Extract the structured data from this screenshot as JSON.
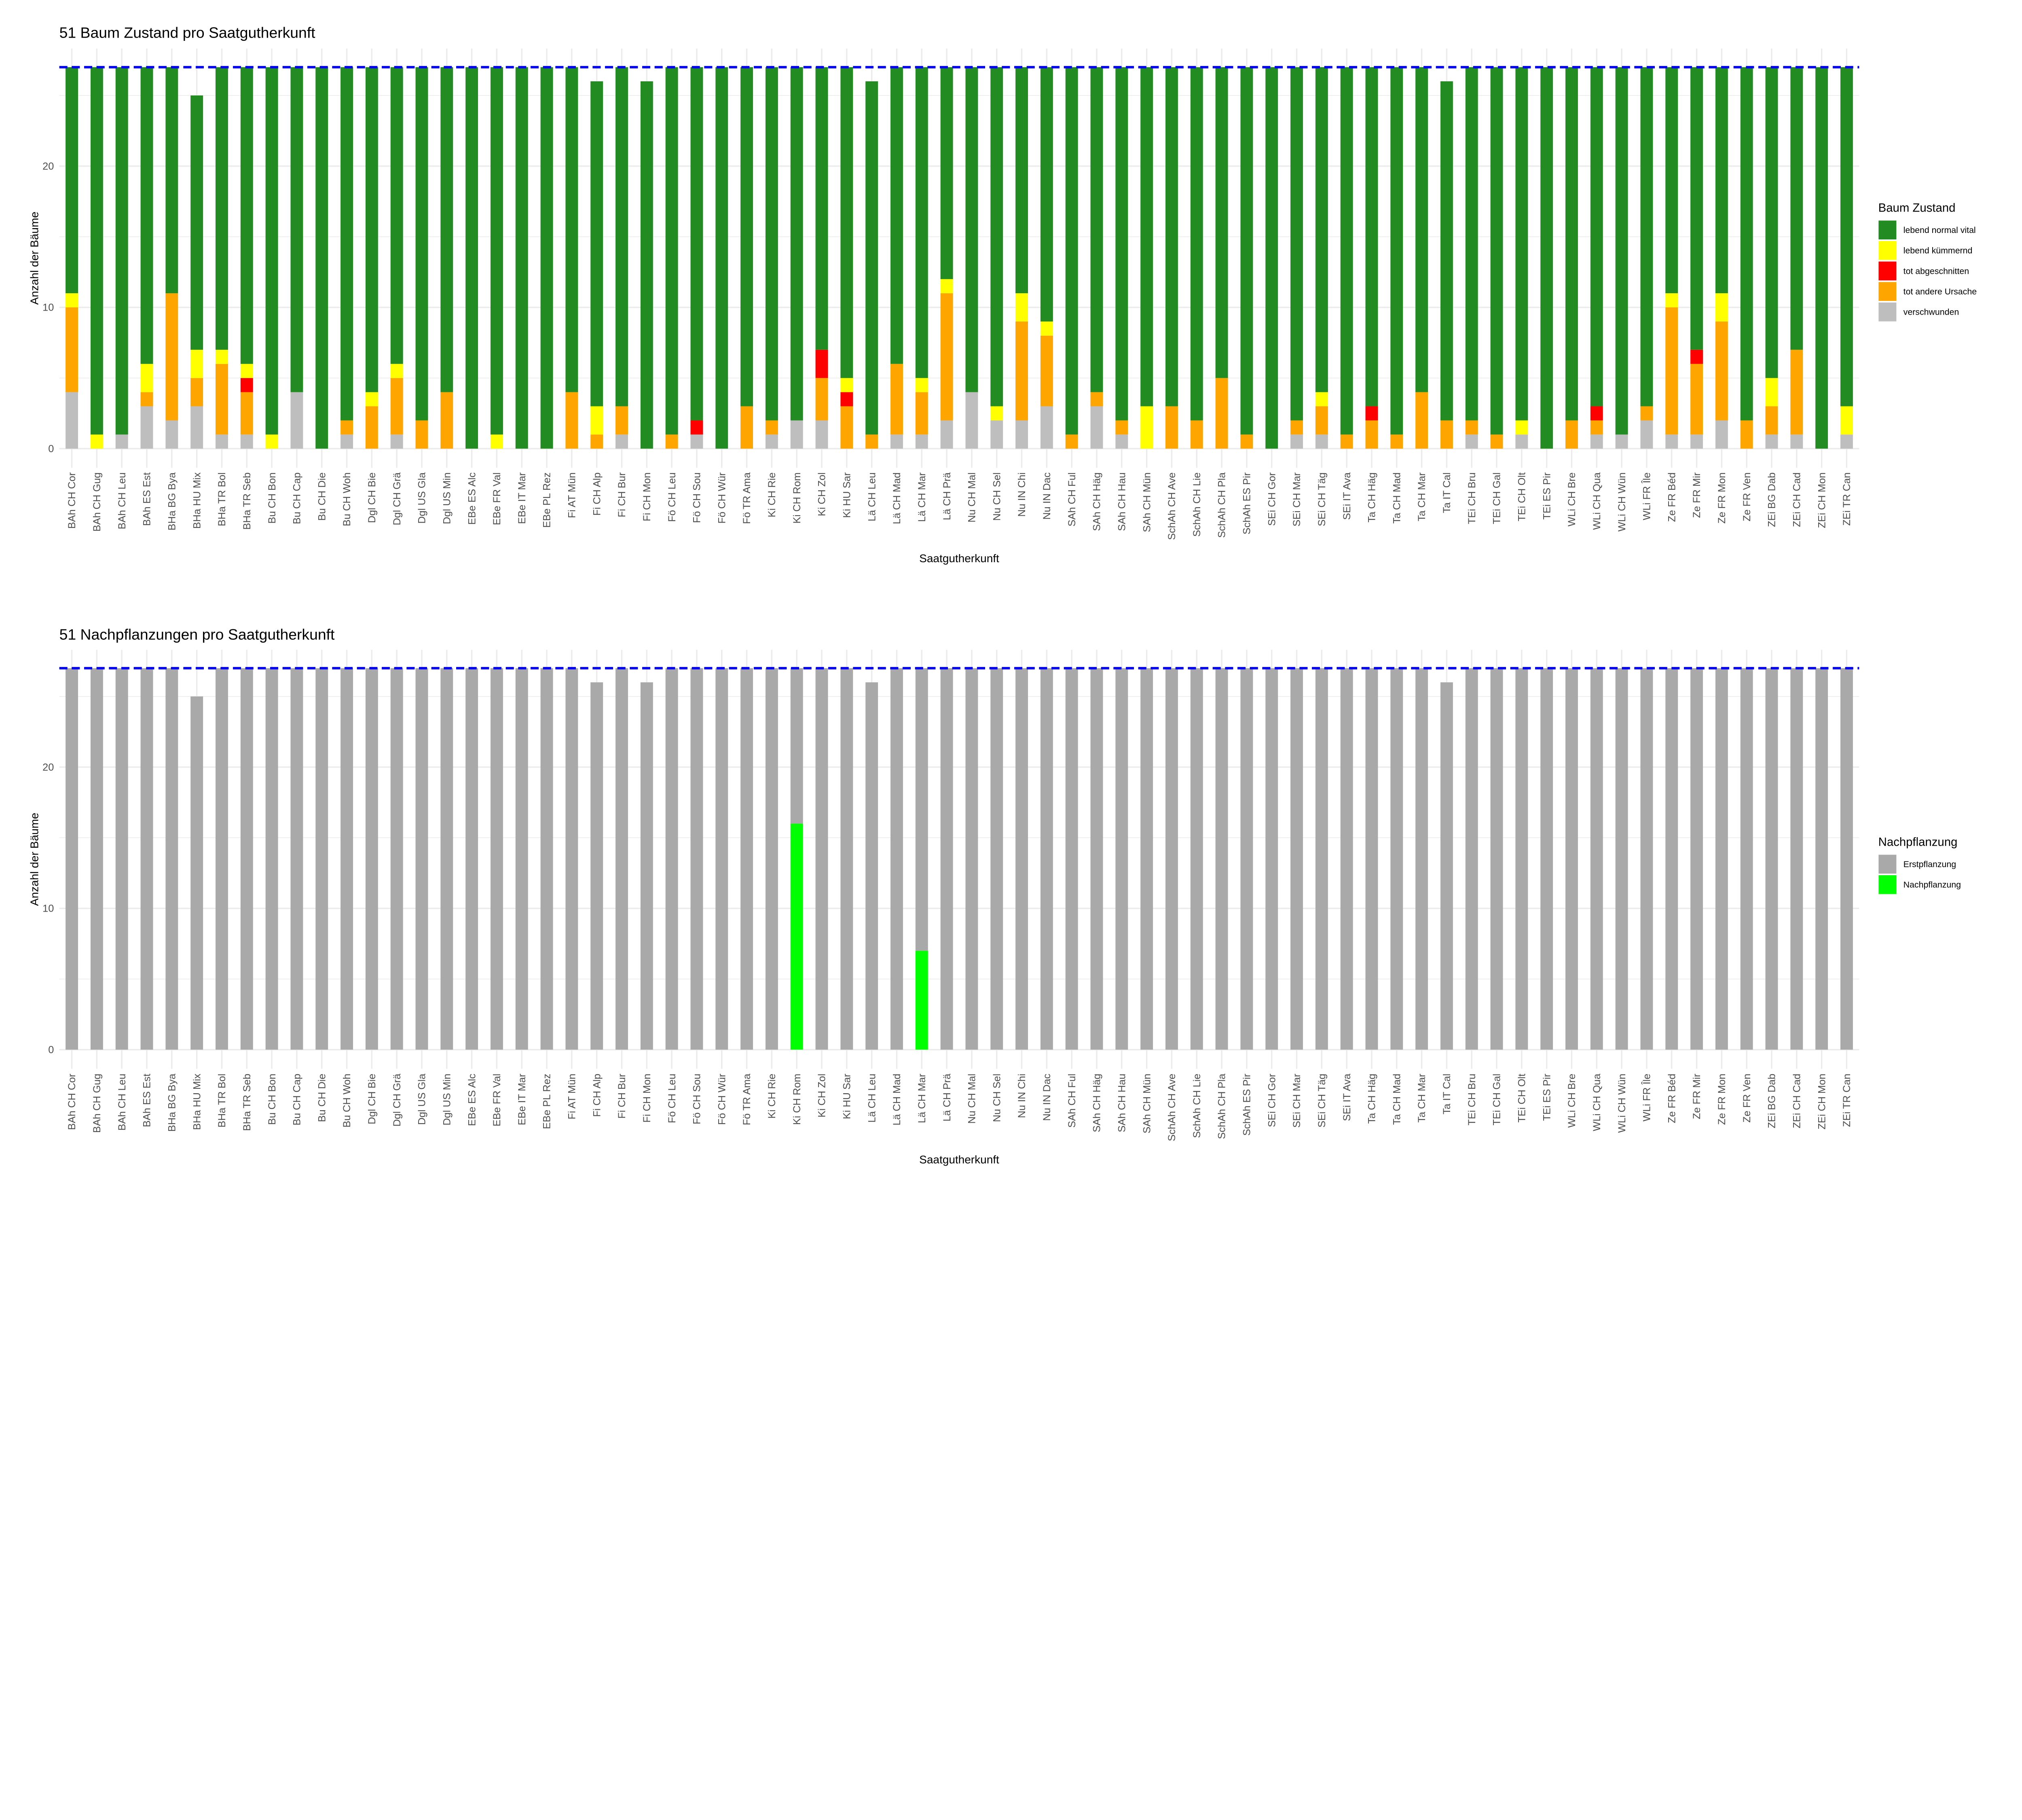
{
  "chart_data": [
    {
      "type": "bar",
      "stacked": true,
      "title": "51 Baum Zustand pro Saatgutherkunft",
      "xlabel": "Saatgutherkunft",
      "ylabel": "Anzahl der Bäume",
      "yticks": [
        "0",
        "10",
        "20"
      ],
      "ylim": [
        0,
        28
      ],
      "grid": true,
      "reference_line": {
        "y": 27,
        "color": "#0000FF",
        "style": "dashed"
      },
      "legend": {
        "title": "Baum Zustand",
        "position": "right"
      },
      "categories": [
        "BAh CH Cor",
        "BAh CH Gug",
        "BAh CH Leu",
        "BAh ES Est",
        "BHa BG Bya",
        "BHa HU Mix",
        "BHa TR Bol",
        "BHa TR Seb",
        "Bu CH Bon",
        "Bu CH Cap",
        "Bu CH Die",
        "Bu CH Woh",
        "Dgl CH Bie",
        "Dgl CH Grä",
        "Dgl US Gla",
        "Dgl US Min",
        "EBe ES Alc",
        "EBe FR Val",
        "EBe IT Mar",
        "EBe PL Rez",
        "Fi AT Mün",
        "Fi CH Alp",
        "Fi CH Bur",
        "Fi CH Mon",
        "Fö CH Leu",
        "Fö CH Sou",
        "Fö CH Wür",
        "Fö TR Ama",
        "Ki CH Rie",
        "Ki CH Rom",
        "Ki CH Zol",
        "Ki HU Sar",
        "Lä CH Leu",
        "Lä CH Mad",
        "Lä CH Mar",
        "Lä CH Prä",
        "Nu CH Mal",
        "Nu CH Sel",
        "Nu IN Chi",
        "Nu IN Dac",
        "SAh CH Ful",
        "SAh CH Häg",
        "SAh CH Hau",
        "SAh CH Mün",
        "SchAh CH Ave",
        "SchAh CH Lie",
        "SchAh CH Pla",
        "SchAh ES Pir",
        "SEi CH Gor",
        "SEi CH Mar",
        "SEi CH Täg",
        "SEi IT Ava",
        "Ta CH Häg",
        "Ta CH Mad",
        "Ta CH Mar",
        "Ta IT Cal",
        "TEi CH Bru",
        "TEi CH Gal",
        "TEi CH Olt",
        "TEi ES Pir",
        "WLi CH Bre",
        "WLi CH Qua",
        "WLi CH Wün",
        "WLi FR Île",
        "Ze FR Béd",
        "Ze FR Mir",
        "Ze FR Mon",
        "Ze FR Ven",
        "ZEi BG Dab",
        "ZEi CH Cad",
        "ZEi CH Mon",
        "ZEi TR Can"
      ],
      "series": [
        {
          "name": "verschwunden",
          "color": "#BEBEBE",
          "values": [
            4,
            0,
            1,
            3,
            2,
            3,
            1,
            1,
            0,
            4,
            0,
            1,
            0,
            1,
            0,
            0,
            0,
            0,
            0,
            0,
            0,
            0,
            1,
            0,
            0,
            1,
            0,
            0,
            1,
            2,
            2,
            0,
            0,
            1,
            1,
            2,
            4,
            2,
            2,
            3,
            0,
            3,
            1,
            0,
            0,
            0,
            0,
            0,
            0,
            1,
            1,
            0,
            0,
            0,
            0,
            0,
            1,
            0,
            1,
            0,
            0,
            1,
            1,
            2,
            1,
            1,
            2,
            0,
            1,
            1,
            0,
            1
          ]
        },
        {
          "name": "tot andere Ursache",
          "color": "#FFA500",
          "values": [
            6,
            0,
            0,
            1,
            9,
            2,
            5,
            3,
            0,
            0,
            0,
            1,
            3,
            4,
            2,
            4,
            0,
            0,
            0,
            0,
            4,
            1,
            2,
            0,
            1,
            0,
            0,
            3,
            1,
            0,
            3,
            3,
            1,
            5,
            3,
            9,
            0,
            0,
            7,
            5,
            1,
            1,
            1,
            0,
            3,
            2,
            5,
            1,
            0,
            1,
            2,
            1,
            2,
            1,
            4,
            2,
            1,
            1,
            0,
            0,
            2,
            1,
            0,
            1,
            9,
            5,
            7,
            2,
            2,
            6,
            0,
            0
          ]
        },
        {
          "name": "tot abgeschnitten",
          "color": "#FF0000",
          "values": [
            0,
            0,
            0,
            0,
            0,
            0,
            0,
            1,
            0,
            0,
            0,
            0,
            0,
            0,
            0,
            0,
            0,
            0,
            0,
            0,
            0,
            0,
            0,
            0,
            0,
            1,
            0,
            0,
            0,
            0,
            2,
            1,
            0,
            0,
            0,
            0,
            0,
            0,
            0,
            0,
            0,
            0,
            0,
            0,
            0,
            0,
            0,
            0,
            0,
            0,
            0,
            0,
            1,
            0,
            0,
            0,
            0,
            0,
            0,
            0,
            0,
            1,
            0,
            0,
            0,
            1,
            0,
            0,
            0,
            0,
            0,
            0
          ]
        },
        {
          "name": "lebend kümmernd",
          "color": "#FFFF00",
          "values": [
            1,
            1,
            0,
            2,
            0,
            2,
            1,
            1,
            1,
            0,
            0,
            0,
            1,
            1,
            0,
            0,
            0,
            1,
            0,
            0,
            0,
            2,
            0,
            0,
            0,
            0,
            0,
            0,
            0,
            0,
            0,
            1,
            0,
            0,
            1,
            1,
            0,
            1,
            2,
            1,
            0,
            0,
            0,
            3,
            0,
            0,
            0,
            0,
            0,
            0,
            1,
            0,
            0,
            0,
            0,
            0,
            0,
            0,
            1,
            0,
            0,
            0,
            0,
            0,
            1,
            0,
            2,
            0,
            2,
            0,
            0,
            2
          ]
        },
        {
          "name": "lebend normal vital",
          "color": "#228B22",
          "values": [
            16,
            26,
            26,
            21,
            16,
            18,
            20,
            21,
            26,
            23,
            27,
            25,
            23,
            21,
            25,
            23,
            27,
            26,
            27,
            27,
            23,
            23,
            24,
            26,
            26,
            25,
            27,
            24,
            25,
            25,
            20,
            22,
            25,
            21,
            22,
            15,
            23,
            24,
            16,
            18,
            26,
            23,
            25,
            24,
            24,
            25,
            22,
            26,
            27,
            25,
            23,
            26,
            24,
            26,
            23,
            24,
            25,
            26,
            25,
            27,
            25,
            24,
            26,
            24,
            16,
            20,
            16,
            25,
            22,
            20,
            27,
            24
          ]
        }
      ],
      "legend_order": [
        "lebend normal vital",
        "lebend kümmernd",
        "tot abgeschnitten",
        "tot andere Ursache",
        "verschwunden"
      ]
    },
    {
      "type": "bar",
      "stacked": true,
      "title": "51 Nachpflanzungen pro Saatgutherkunft",
      "xlabel": "Saatgutherkunft",
      "ylabel": "Anzahl der Bäume",
      "yticks": [
        "0",
        "10",
        "20"
      ],
      "ylim": [
        0,
        28
      ],
      "grid": true,
      "reference_line": {
        "y": 27,
        "color": "#0000FF",
        "style": "dashed"
      },
      "legend": {
        "title": "Nachpflanzung",
        "position": "right"
      },
      "categories_same_as_first": true,
      "series": [
        {
          "name": "Nachpflanzung",
          "color": "#00FF00",
          "values": [
            0,
            0,
            0,
            0,
            0,
            0,
            0,
            0,
            0,
            0,
            0,
            0,
            0,
            0,
            0,
            0,
            0,
            0,
            0,
            0,
            0,
            0,
            0,
            0,
            0,
            0,
            0,
            0,
            0,
            16,
            0,
            0,
            0,
            0,
            7,
            0,
            0,
            0,
            0,
            0,
            0,
            0,
            0,
            0,
            0,
            0,
            0,
            0,
            0,
            0,
            0,
            0,
            0,
            0,
            0,
            0,
            0,
            0,
            0,
            0,
            0,
            0,
            0,
            0,
            0,
            0,
            0,
            0,
            0,
            0,
            0,
            0
          ]
        },
        {
          "name": "Erstpflanzung",
          "color": "#A9A9A9",
          "values": [
            27,
            27,
            27,
            27,
            27,
            25,
            27,
            27,
            27,
            27,
            27,
            27,
            27,
            27,
            27,
            27,
            27,
            27,
            27,
            27,
            27,
            26,
            27,
            26,
            27,
            27,
            27,
            27,
            27,
            11,
            27,
            27,
            26,
            27,
            20,
            27,
            27,
            27,
            27,
            27,
            27,
            27,
            27,
            27,
            27,
            27,
            27,
            27,
            27,
            27,
            27,
            27,
            27,
            27,
            27,
            26,
            27,
            27,
            27,
            27,
            27,
            27,
            27,
            27,
            27,
            27,
            27,
            27,
            27,
            27,
            27,
            27
          ]
        }
      ],
      "legend_order": [
        "Erstpflanzung",
        "Nachpflanzung"
      ]
    }
  ]
}
